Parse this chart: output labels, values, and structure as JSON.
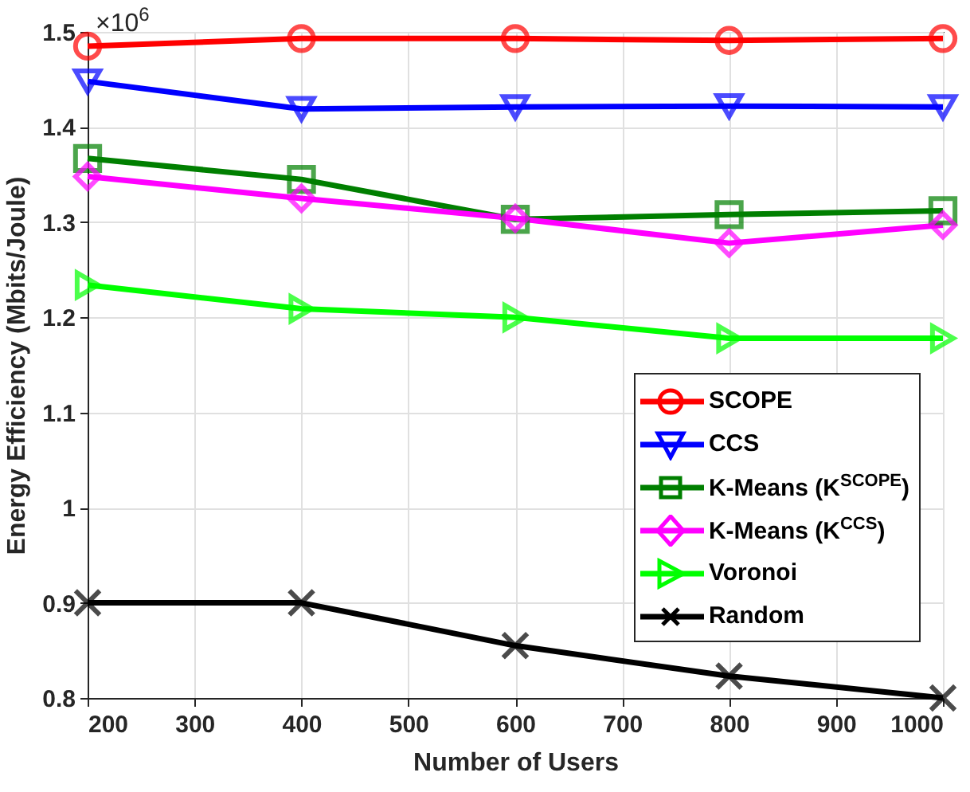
{
  "chart_data": {
    "type": "line",
    "xlabel": "Number of Users",
    "ylabel": "Energy Efficiency (Mbits/Joule)",
    "annotations": [
      "×10$^{6}$"
    ],
    "x": [
      200,
      400,
      600,
      800,
      1000
    ],
    "series": [
      {
        "name": "SCOPE",
        "color": "#ff0000",
        "marker": "circle",
        "values": [
          1.485,
          1.493,
          1.493,
          1.491,
          1.493
        ]
      },
      {
        "name": "CCS",
        "color": "#0000ff",
        "marker": "triangle-down",
        "values": [
          1.448,
          1.419,
          1.421,
          1.422,
          1.421
        ]
      },
      {
        "name": "K-Means (K$^{SCOPE}$)",
        "color": "#007f00",
        "marker": "square",
        "values": [
          1.367,
          1.345,
          1.303,
          1.308,
          1.312
        ]
      },
      {
        "name": "K-Means (K$^{CCS}$)",
        "color": "#ff00ff",
        "marker": "diamond",
        "values": [
          1.348,
          1.325,
          1.304,
          1.278,
          1.297
        ]
      },
      {
        "name": "Voronoi",
        "color": "#00ff00",
        "marker": "triangle-right",
        "values": [
          1.234,
          1.209,
          1.2,
          1.178,
          1.178
        ]
      },
      {
        "name": "Random",
        "color": "#000000",
        "marker": "cross",
        "values": [
          0.9,
          0.9,
          0.855,
          0.823,
          0.8
        ]
      }
    ],
    "xlim": [
      200,
      1000
    ],
    "xticks": [
      200,
      300,
      400,
      500,
      600,
      700,
      800,
      900,
      1000
    ],
    "ylim": [
      0.8,
      1.5
    ],
    "yticks": [
      0.8,
      0.9,
      1,
      1.1,
      1.2,
      1.3,
      1.4,
      1.5
    ],
    "grid": true,
    "legend": "bottom right",
    "line_style": "solid"
  }
}
